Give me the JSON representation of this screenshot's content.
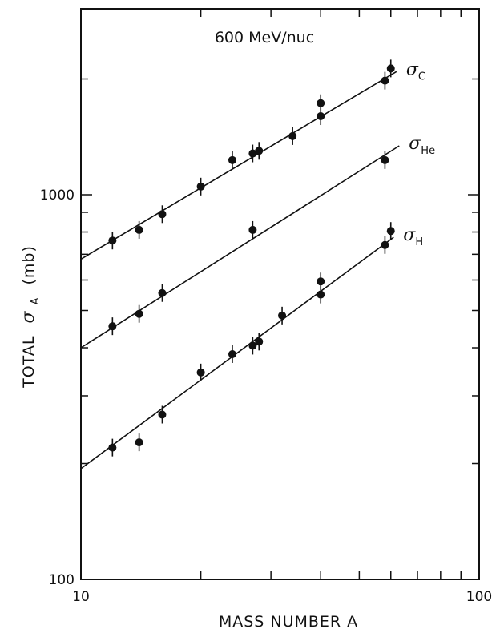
{
  "chart_data": {
    "type": "scatter",
    "title": "600 MeV/nuc",
    "xlabel": "MASS NUMBER A",
    "ylabel": {
      "prefix": "TOTAL",
      "symbol": "σ",
      "subscript": "A",
      "unit": "(mb)"
    },
    "xscale": "log",
    "yscale": "log",
    "xlim": [
      10,
      100
    ],
    "ylim": [
      100,
      3000
    ],
    "x_tick_labels": [
      "10",
      "100"
    ],
    "y_tick_labels": [
      "100",
      "1000"
    ],
    "grid": false,
    "series": [
      {
        "symbol": "σ",
        "subscript": "C",
        "points": [
          {
            "x": 12,
            "y": 760
          },
          {
            "x": 14,
            "y": 810
          },
          {
            "x": 16,
            "y": 890
          },
          {
            "x": 20,
            "y": 1050
          },
          {
            "x": 24,
            "y": 1230
          },
          {
            "x": 27,
            "y": 1280
          },
          {
            "x": 28,
            "y": 1300
          },
          {
            "x": 34,
            "y": 1420
          },
          {
            "x": 40,
            "y": 1600
          },
          {
            "x": 40,
            "y": 1730
          },
          {
            "x": 58,
            "y": 1980
          },
          {
            "x": 60,
            "y": 2130
          }
        ],
        "fit": [
          [
            10,
            680
          ],
          [
            62,
            2090
          ]
        ]
      },
      {
        "symbol": "σ",
        "subscript": "He",
        "points": [
          {
            "x": 12,
            "y": 455
          },
          {
            "x": 14,
            "y": 490
          },
          {
            "x": 16,
            "y": 555
          },
          {
            "x": 27,
            "y": 810
          },
          {
            "x": 58,
            "y": 1230
          }
        ],
        "fit": [
          [
            10,
            400
          ],
          [
            63,
            1340
          ]
        ]
      },
      {
        "symbol": "σ",
        "subscript": "H",
        "points": [
          {
            "x": 12,
            "y": 220
          },
          {
            "x": 14,
            "y": 227
          },
          {
            "x": 16,
            "y": 268
          },
          {
            "x": 20,
            "y": 345
          },
          {
            "x": 24,
            "y": 385
          },
          {
            "x": 27,
            "y": 405
          },
          {
            "x": 28,
            "y": 415
          },
          {
            "x": 32,
            "y": 485
          },
          {
            "x": 40,
            "y": 550
          },
          {
            "x": 40,
            "y": 595
          },
          {
            "x": 58,
            "y": 740
          },
          {
            "x": 60,
            "y": 805
          }
        ],
        "fit": [
          [
            10,
            194
          ],
          [
            61,
            775
          ]
        ]
      }
    ]
  }
}
